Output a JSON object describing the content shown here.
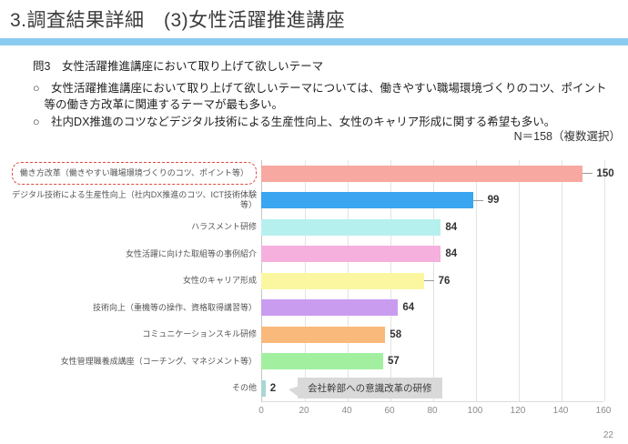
{
  "slide": {
    "title": "3.調査結果詳細　(3)女性活躍推進講座",
    "page_number": "22",
    "accent_color": "#8ccbf0"
  },
  "question": {
    "label": "問3　女性活躍推進講座において取り上げて欲しいテーマ",
    "bullets": [
      "○　女性活躍推進講座において取り上げて欲しいテーマについては、働きやすい職場環境づくりのコツ、ポイント\n　等の働き方改革に関連するテーマが最も多い。",
      "○　社内DX推進のコツなどデジタル技術による生産性向上、女性のキャリア形成に関する希望も多い。"
    ]
  },
  "chart_data": {
    "type": "bar",
    "orientation": "horizontal",
    "note": "N＝158（複数選択）",
    "categories": [
      "働き方改革（働きやすい職場環境づくりのコツ、ポイント等）",
      "デジタル技術による生産性向上（社内DX推進のコツ、ICT技術体験等）",
      "ハラスメント研修",
      "女性活躍に向けた取組等の事例紹介",
      "女性のキャリア形成",
      "技術向上（重機等の操作、資格取得講習等）",
      "コミュニケーションスキル研修",
      "女性管理職養成講座（コーチング、マネジメント等）",
      "その他"
    ],
    "values": [
      150,
      99,
      84,
      84,
      76,
      64,
      58,
      57,
      2
    ],
    "colors": [
      "#f7a8a0",
      "#3aa5f0",
      "#b5f0ee",
      "#f5b0de",
      "#faf7a0",
      "#c99cf0",
      "#f9b97a",
      "#a3efa0",
      "#a9d6d3"
    ],
    "xlim": [
      0,
      160
    ],
    "xticks": [
      0,
      20,
      40,
      60,
      80,
      100,
      120,
      140,
      160
    ],
    "grid": true,
    "highlight_index": 0,
    "highlight_box_color": "#e0493f",
    "leader_line_indexes": [
      0,
      1,
      4
    ],
    "callout": {
      "index": 8,
      "text": "会社幹部への意識改革の研修",
      "background": "#d9d9d9"
    }
  }
}
